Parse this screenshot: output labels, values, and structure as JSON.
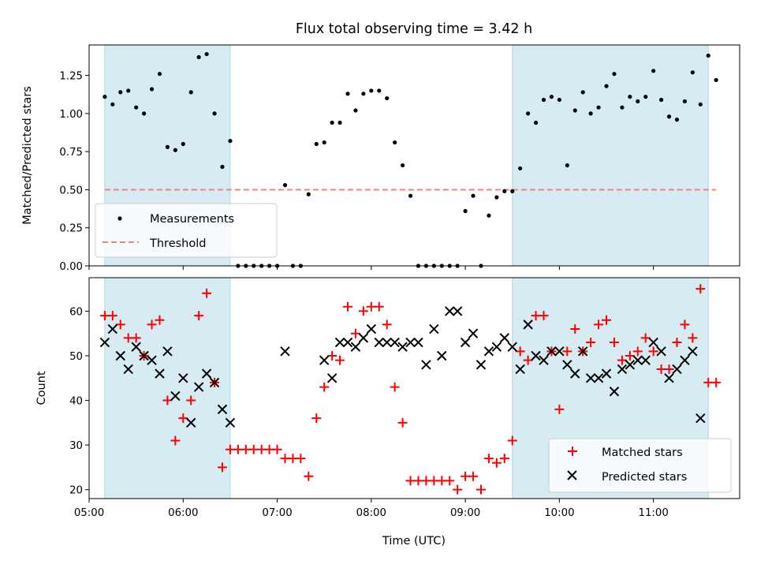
{
  "chart_data": [
    {
      "type": "scatter",
      "title": "Flux total observing time = 3.42 h",
      "ylabel": "Matched/Predicted stars",
      "xlabel": "",
      "xlim": [
        "05:00",
        "11:55"
      ],
      "ylim": [
        0,
        1.45
      ],
      "x_ticks": [
        "05:00",
        "06:00",
        "07:00",
        "08:00",
        "09:00",
        "10:00",
        "11:00"
      ],
      "y_ticks": [
        "0.00",
        "0.25",
        "0.50",
        "0.75",
        "1.00",
        "1.25"
      ],
      "grid": false,
      "legend_position": "lower-left",
      "shaded_intervals": [
        [
          "05:10",
          "06:30"
        ],
        [
          "09:30",
          "11:35"
        ]
      ],
      "shade_color": "#add8e6",
      "series": [
        {
          "name": "Measurements",
          "marker": "dot",
          "color": "#000000",
          "x": [
            "05:10",
            "05:15",
            "05:20",
            "05:25",
            "05:30",
            "05:35",
            "05:40",
            "05:45",
            "05:50",
            "05:55",
            "06:00",
            "06:05",
            "06:10",
            "06:15",
            "06:20",
            "06:25",
            "06:30",
            "06:35",
            "06:40",
            "06:45",
            "06:50",
            "06:55",
            "07:00",
            "07:05",
            "07:10",
            "07:15",
            "07:20",
            "07:25",
            "07:30",
            "07:35",
            "07:40",
            "07:45",
            "07:50",
            "07:55",
            "08:00",
            "08:05",
            "08:10",
            "08:15",
            "08:20",
            "08:25",
            "08:30",
            "08:35",
            "08:40",
            "08:45",
            "08:50",
            "08:55",
            "09:00",
            "09:05",
            "09:10",
            "09:15",
            "09:20",
            "09:25",
            "09:30",
            "09:35",
            "09:40",
            "09:45",
            "09:50",
            "09:55",
            "10:00",
            "10:05",
            "10:10",
            "10:15",
            "10:20",
            "10:25",
            "10:30",
            "10:35",
            "10:40",
            "10:45",
            "10:50",
            "10:55",
            "11:00",
            "11:05",
            "11:10",
            "11:15",
            "11:20",
            "11:25",
            "11:30",
            "11:35",
            "11:40"
          ],
          "y": [
            1.11,
            1.06,
            1.14,
            1.15,
            1.04,
            1.0,
            1.16,
            1.26,
            0.78,
            0.76,
            0.8,
            1.14,
            1.37,
            1.39,
            1.0,
            0.65,
            0.82,
            0.0,
            0.0,
            0.0,
            0.0,
            0.0,
            0.0,
            0.53,
            0.0,
            0.0,
            0.47,
            0.8,
            0.81,
            0.94,
            0.94,
            1.13,
            1.02,
            1.13,
            1.15,
            1.15,
            1.1,
            0.81,
            0.66,
            0.46,
            0.0,
            0.0,
            0.0,
            0.0,
            0.0,
            0.0,
            0.36,
            0.46,
            0.0,
            0.33,
            0.45,
            0.49,
            0.49,
            0.64,
            1.0,
            0.94,
            1.09,
            1.11,
            1.09,
            0.66,
            1.02,
            1.14,
            1.0,
            1.04,
            1.18,
            1.26,
            1.04,
            1.11,
            1.08,
            1.11,
            1.28,
            1.09,
            0.98,
            0.96,
            1.08,
            1.27,
            1.06,
            1.38,
            1.22
          ]
        },
        {
          "name": "Threshold",
          "style": "dashed",
          "color": "#f08080",
          "x": [
            "05:10",
            "11:40"
          ],
          "y": [
            0.5,
            0.5
          ]
        }
      ]
    },
    {
      "type": "scatter",
      "title": "",
      "ylabel": "Count",
      "xlabel": "Time (UTC)",
      "xlim": [
        "05:00",
        "11:55"
      ],
      "ylim": [
        18,
        67.5
      ],
      "x_ticks": [
        "05:00",
        "06:00",
        "07:00",
        "08:00",
        "09:00",
        "10:00",
        "11:00"
      ],
      "y_ticks": [
        "20",
        "30",
        "40",
        "50",
        "60"
      ],
      "grid": false,
      "legend_position": "lower-right",
      "shaded_intervals": [
        [
          "05:10",
          "06:30"
        ],
        [
          "09:30",
          "11:35"
        ]
      ],
      "shade_color": "#add8e6",
      "series": [
        {
          "name": "Matched stars",
          "marker": "plus",
          "color": "#ff0000",
          "x": [
            "05:10",
            "05:15",
            "05:20",
            "05:25",
            "05:30",
            "05:35",
            "05:40",
            "05:45",
            "05:50",
            "05:55",
            "06:00",
            "06:05",
            "06:10",
            "06:15",
            "06:20",
            "06:25",
            "06:30",
            "06:35",
            "06:40",
            "06:45",
            "06:50",
            "06:55",
            "07:00",
            "07:05",
            "07:10",
            "07:15",
            "07:20",
            "07:25",
            "07:30",
            "07:35",
            "07:40",
            "07:45",
            "07:50",
            "07:55",
            "08:00",
            "08:05",
            "08:10",
            "08:15",
            "08:20",
            "08:25",
            "08:30",
            "08:35",
            "08:40",
            "08:45",
            "08:50",
            "08:55",
            "09:00",
            "09:05",
            "09:10",
            "09:15",
            "09:20",
            "09:25",
            "09:30",
            "09:35",
            "09:40",
            "09:45",
            "09:50",
            "09:55",
            "10:00",
            "10:05",
            "10:10",
            "10:15",
            "10:20",
            "10:25",
            "10:30",
            "10:35",
            "10:40",
            "10:45",
            "10:50",
            "10:55",
            "11:00",
            "11:05",
            "11:10",
            "11:15",
            "11:20",
            "11:25",
            "11:30",
            "11:35",
            "11:40"
          ],
          "y": [
            59,
            59,
            57,
            54,
            54,
            50,
            57,
            58,
            40,
            31,
            36,
            40,
            59,
            64,
            44,
            25,
            29,
            29,
            29,
            29,
            29,
            29,
            29,
            27,
            27,
            27,
            23,
            36,
            43,
            50,
            49,
            61,
            55,
            60,
            61,
            61,
            57,
            43,
            35,
            22,
            22,
            22,
            22,
            22,
            22,
            20,
            23,
            23,
            20,
            27,
            26,
            27,
            31,
            51,
            49,
            59,
            59,
            51,
            38,
            51,
            56,
            51,
            53,
            57,
            58,
            53,
            49,
            50,
            51,
            54,
            51,
            47,
            47,
            53,
            57,
            54,
            65,
            44,
            44
          ]
        },
        {
          "name": "Predicted stars",
          "marker": "x",
          "color": "#000000",
          "x": [
            "05:10",
            "05:15",
            "05:20",
            "05:25",
            "05:30",
            "05:35",
            "05:40",
            "05:45",
            "05:50",
            "05:55",
            "06:00",
            "06:05",
            "06:10",
            "06:15",
            "06:20",
            "06:25",
            "06:30",
            "07:05",
            "07:30",
            "07:35",
            "07:40",
            "07:45",
            "07:50",
            "07:55",
            "08:00",
            "08:05",
            "08:10",
            "08:15",
            "08:20",
            "08:25",
            "08:30",
            "08:35",
            "08:40",
            "08:45",
            "08:50",
            "08:55",
            "09:00",
            "09:05",
            "09:10",
            "09:15",
            "09:20",
            "09:25",
            "09:30",
            "09:35",
            "09:40",
            "09:45",
            "09:50",
            "09:55",
            "10:00",
            "10:05",
            "10:10",
            "10:15",
            "10:20",
            "10:25",
            "10:30",
            "10:35",
            "10:40",
            "10:45",
            "10:50",
            "10:55",
            "11:00",
            "11:05",
            "11:10",
            "11:15",
            "11:20",
            "11:25",
            "11:30"
          ],
          "y": [
            53,
            56,
            50,
            47,
            52,
            50,
            49,
            46,
            51,
            41,
            45,
            35,
            43,
            46,
            44,
            38,
            35,
            51,
            49,
            45,
            53,
            53,
            52,
            54,
            56,
            53,
            53,
            53,
            52,
            53,
            53,
            48,
            56,
            50,
            60,
            60,
            53,
            55,
            48,
            51,
            52,
            54,
            52,
            47,
            57,
            50,
            49,
            51,
            51,
            48,
            46,
            51,
            45,
            45,
            46,
            42,
            47,
            48,
            49,
            49,
            53,
            51,
            45,
            47,
            49,
            51,
            36
          ]
        }
      ]
    }
  ]
}
